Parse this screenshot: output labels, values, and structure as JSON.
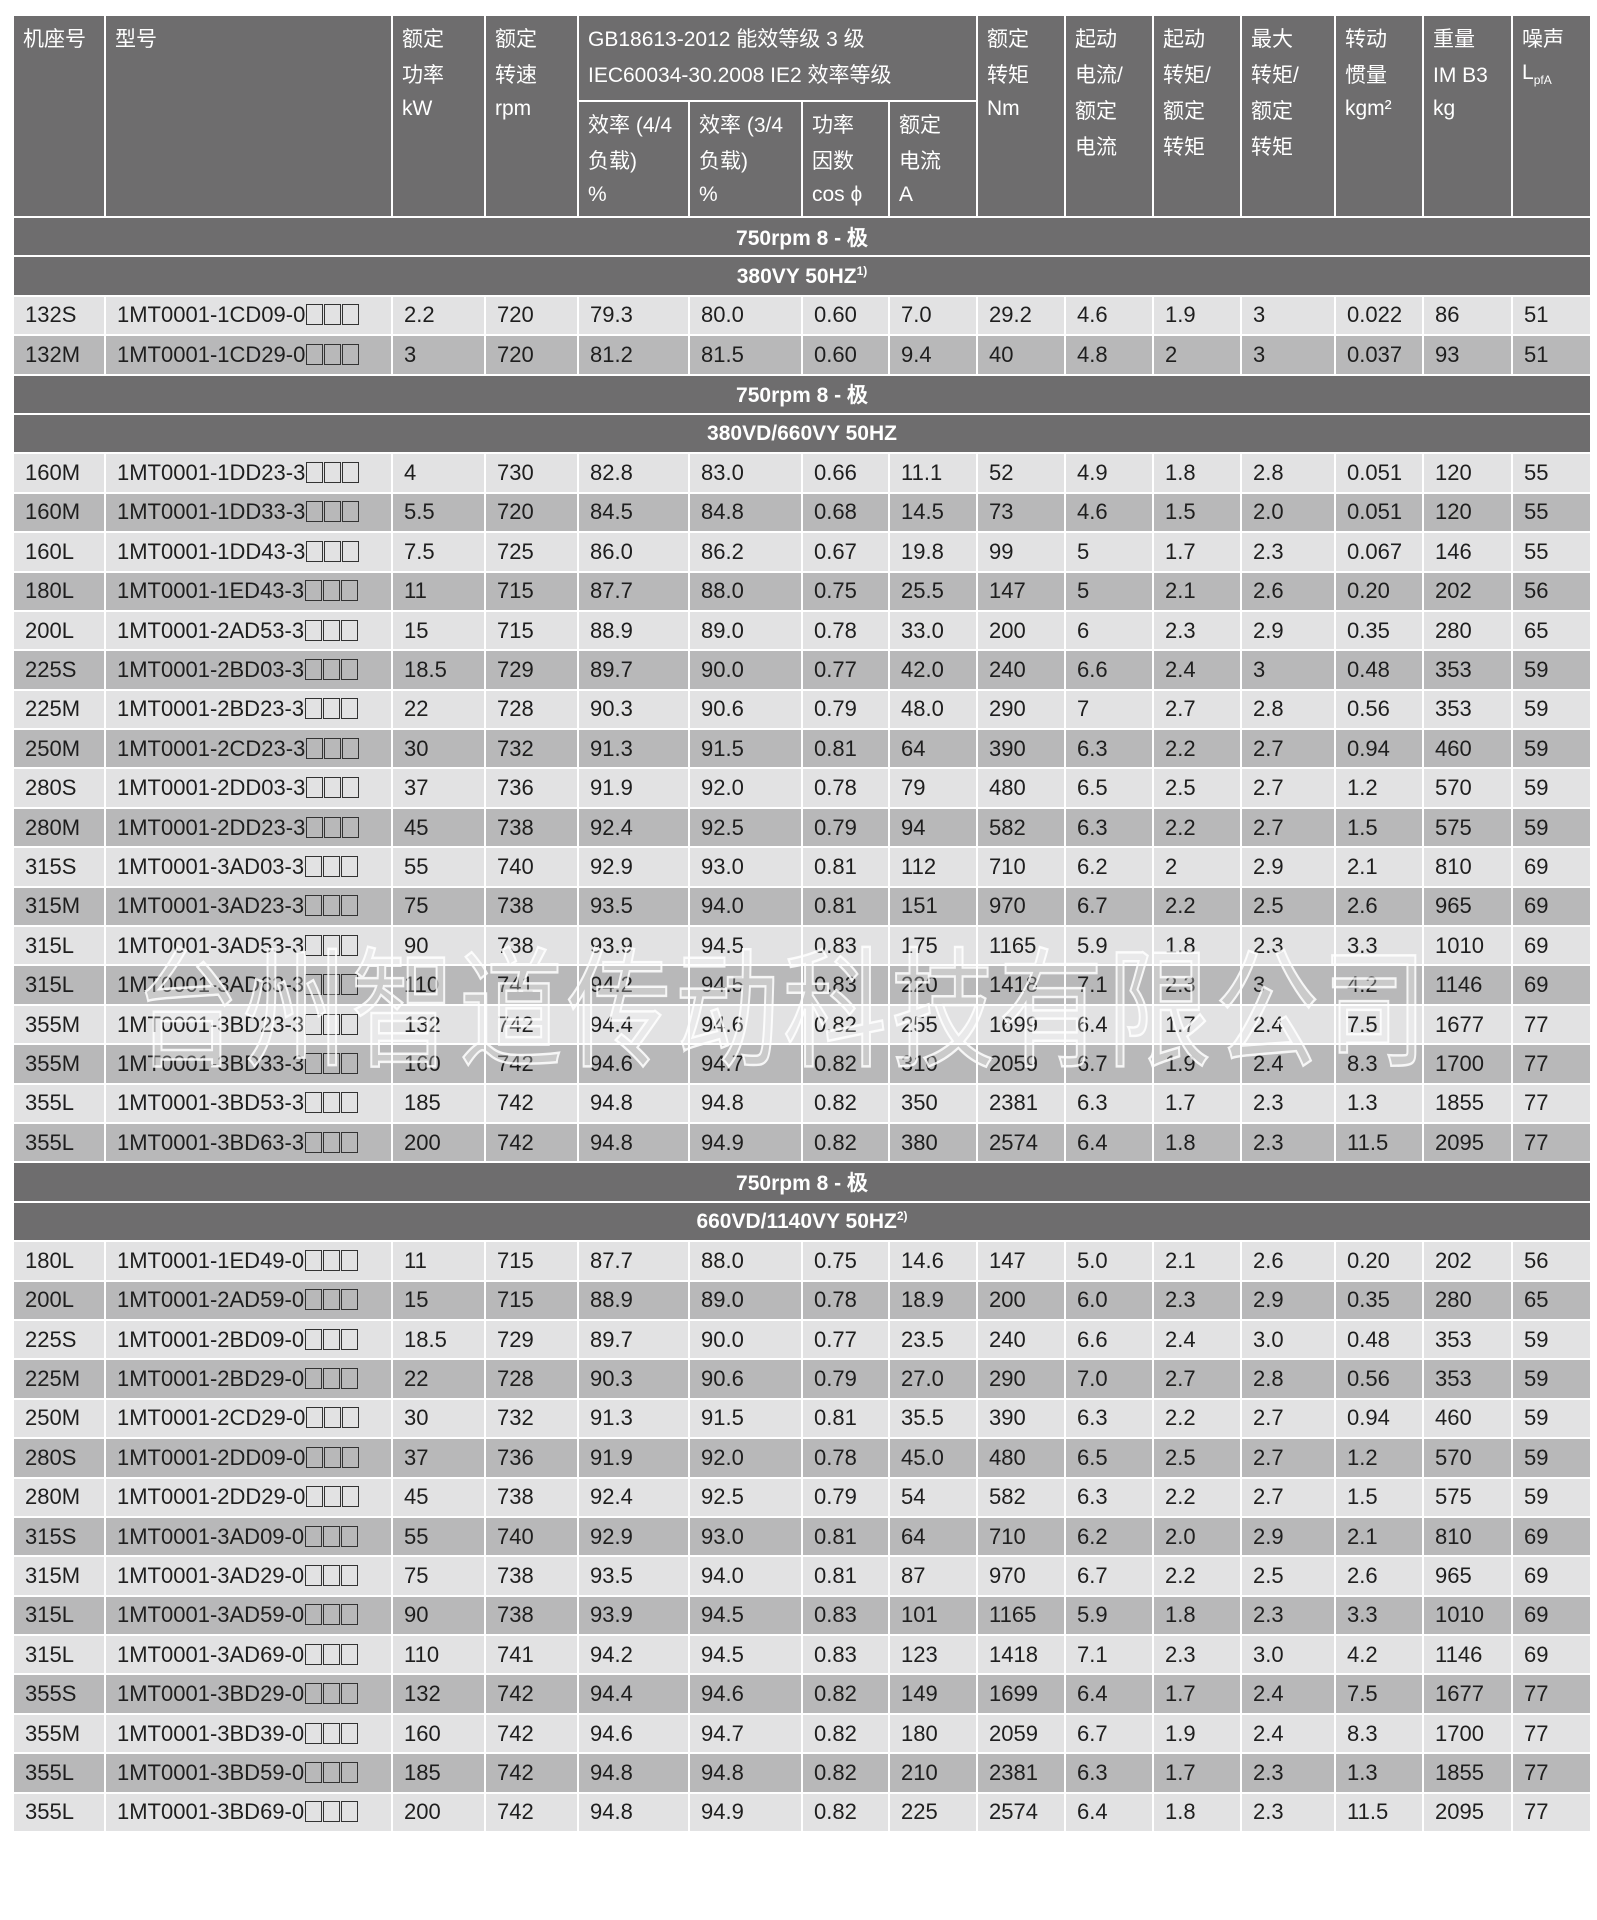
{
  "header": {
    "columns": [
      {
        "lines": [
          "机座号"
        ],
        "unit": ""
      },
      {
        "lines": [
          "型号"
        ],
        "unit": ""
      },
      {
        "lines": [
          "额定",
          "功率"
        ],
        "unit": "kW"
      },
      {
        "lines": [
          "额定",
          "转速"
        ],
        "unit": "rpm"
      },
      {
        "group": true
      },
      {
        "group": true
      },
      {
        "group": true
      },
      {
        "group": true
      },
      {
        "lines": [
          "额定",
          "转矩"
        ],
        "unit": "Nm"
      },
      {
        "lines": [
          "起动",
          "电流/",
          "额定",
          "电流"
        ],
        "unit": ""
      },
      {
        "lines": [
          "起动",
          "转矩/",
          "额定",
          "转矩"
        ],
        "unit": ""
      },
      {
        "lines": [
          "最大",
          "转矩/",
          "额定",
          "转矩"
        ],
        "unit": ""
      },
      {
        "lines": [
          "转动",
          "惯量"
        ],
        "unit": "kgm²"
      },
      {
        "lines": [
          "重量",
          "IM B3"
        ],
        "unit": "kg"
      },
      {
        "lines": [
          "噪声"
        ],
        "unit": "L",
        "unit_sub": "pfA"
      }
    ],
    "group": {
      "lines": [
        "GB18613-2012 能效等级 3 级",
        "IEC60034-30.2008 IE2 效率等级"
      ],
      "sub": [
        {
          "lines": [
            "效率 (4/4",
            "负载)"
          ],
          "unit": "%"
        },
        {
          "lines": [
            "效率 (3/4",
            "负载)"
          ],
          "unit": "%"
        },
        {
          "lines": [
            "功率",
            "因数"
          ],
          "unit": "cos ϕ"
        },
        {
          "lines": [
            "额定",
            "电流"
          ],
          "unit": "A"
        }
      ]
    }
  },
  "sections": [
    {
      "speed": "750rpm 8 - 极",
      "voltage": "380VY  50HZ",
      "footnote": "1)",
      "rows": [
        [
          "132S",
          "1MT0001-1CD09-0",
          "2.2",
          "720",
          "79.3",
          "80.0",
          "0.60",
          "7.0",
          "29.2",
          "4.6",
          "1.9",
          "3",
          "0.022",
          "86",
          "51"
        ],
        [
          "132M",
          "1MT0001-1CD29-0",
          "3",
          "720",
          "81.2",
          "81.5",
          "0.60",
          "9.4",
          "40",
          "4.8",
          "2",
          "3",
          "0.037",
          "93",
          "51"
        ]
      ]
    },
    {
      "speed": "750rpm 8 - 极",
      "voltage": "380VD/660VY 50HZ",
      "footnote": "",
      "rows": [
        [
          "160M",
          "1MT0001-1DD23-3",
          "4",
          "730",
          "82.8",
          "83.0",
          "0.66",
          "11.1",
          "52",
          "4.9",
          "1.8",
          "2.8",
          "0.051",
          "120",
          "55"
        ],
        [
          "160M",
          "1MT0001-1DD33-3",
          "5.5",
          "720",
          "84.5",
          "84.8",
          "0.68",
          "14.5",
          "73",
          "4.6",
          "1.5",
          "2.0",
          "0.051",
          "120",
          "55"
        ],
        [
          "160L",
          "1MT0001-1DD43-3",
          "7.5",
          "725",
          "86.0",
          "86.2",
          "0.67",
          "19.8",
          "99",
          "5",
          "1.7",
          "2.3",
          "0.067",
          "146",
          "55"
        ],
        [
          "180L",
          "1MT0001-1ED43-3",
          "11",
          "715",
          "87.7",
          "88.0",
          "0.75",
          "25.5",
          "147",
          "5",
          "2.1",
          "2.6",
          "0.20",
          "202",
          "56"
        ],
        [
          "200L",
          "1MT0001-2AD53-3",
          "15",
          "715",
          "88.9",
          "89.0",
          "0.78",
          "33.0",
          "200",
          "6",
          "2.3",
          "2.9",
          "0.35",
          "280",
          "65"
        ],
        [
          "225S",
          "1MT0001-2BD03-3",
          "18.5",
          "729",
          "89.7",
          "90.0",
          "0.77",
          "42.0",
          "240",
          "6.6",
          "2.4",
          "3",
          "0.48",
          "353",
          "59"
        ],
        [
          "225M",
          "1MT0001-2BD23-3",
          "22",
          "728",
          "90.3",
          "90.6",
          "0.79",
          "48.0",
          "290",
          "7",
          "2.7",
          "2.8",
          "0.56",
          "353",
          "59"
        ],
        [
          "250M",
          "1MT0001-2CD23-3",
          "30",
          "732",
          "91.3",
          "91.5",
          "0.81",
          "64",
          "390",
          "6.3",
          "2.2",
          "2.7",
          "0.94",
          "460",
          "59"
        ],
        [
          "280S",
          "1MT0001-2DD03-3",
          "37",
          "736",
          "91.9",
          "92.0",
          "0.78",
          "79",
          "480",
          "6.5",
          "2.5",
          "2.7",
          "1.2",
          "570",
          "59"
        ],
        [
          "280M",
          "1MT0001-2DD23-3",
          "45",
          "738",
          "92.4",
          "92.5",
          "0.79",
          "94",
          "582",
          "6.3",
          "2.2",
          "2.7",
          "1.5",
          "575",
          "59"
        ],
        [
          "315S",
          "1MT0001-3AD03-3",
          "55",
          "740",
          "92.9",
          "93.0",
          "0.81",
          "112",
          "710",
          "6.2",
          "2",
          "2.9",
          "2.1",
          "810",
          "69"
        ],
        [
          "315M",
          "1MT0001-3AD23-3",
          "75",
          "738",
          "93.5",
          "94.0",
          "0.81",
          "151",
          "970",
          "6.7",
          "2.2",
          "2.5",
          "2.6",
          "965",
          "69"
        ],
        [
          "315L",
          "1MT0001-3AD53-3",
          "90",
          "738",
          "93.9",
          "94.5",
          "0.83",
          "175",
          "1165",
          "5.9",
          "1.8",
          "2.3",
          "3.3",
          "1010",
          "69"
        ],
        [
          "315L",
          "1MT0001-3AD63-3",
          "110",
          "741",
          "94.2",
          "94.5",
          "0.83",
          "220",
          "1418",
          "7.1",
          "2.3",
          "3",
          "4.2",
          "1146",
          "69"
        ],
        [
          "355M",
          "1MT0001-3BD23-3",
          "132",
          "742",
          "94.4",
          "94.6",
          "0.82",
          "255",
          "1699",
          "6.4",
          "1.7",
          "2.4",
          "7.5",
          "1677",
          "77"
        ],
        [
          "355M",
          "1MT0001-3BD33-3",
          "160",
          "742",
          "94.6",
          "94.7",
          "0.82",
          "310",
          "2059",
          "6.7",
          "1.9",
          "2.4",
          "8.3",
          "1700",
          "77"
        ],
        [
          "355L",
          "1MT0001-3BD53-3",
          "185",
          "742",
          "94.8",
          "94.8",
          "0.82",
          "350",
          "2381",
          "6.3",
          "1.7",
          "2.3",
          "1.3",
          "1855",
          "77"
        ],
        [
          "355L",
          "1MT0001-3BD63-3",
          "200",
          "742",
          "94.8",
          "94.9",
          "0.82",
          "380",
          "2574",
          "6.4",
          "1.8",
          "2.3",
          "11.5",
          "2095",
          "77"
        ]
      ]
    },
    {
      "speed": "750rpm 8 - 极",
      "voltage": "660VD/1140VY 50HZ",
      "footnote": "2)",
      "rows": [
        [
          "180L",
          "1MT0001-1ED49-0",
          "11",
          "715",
          "87.7",
          "88.0",
          "0.75",
          "14.6",
          "147",
          "5.0",
          "2.1",
          "2.6",
          "0.20",
          "202",
          "56"
        ],
        [
          "200L",
          "1MT0001-2AD59-0",
          "15",
          "715",
          "88.9",
          "89.0",
          "0.78",
          "18.9",
          "200",
          "6.0",
          "2.3",
          "2.9",
          "0.35",
          "280",
          "65"
        ],
        [
          "225S",
          "1MT0001-2BD09-0",
          "18.5",
          "729",
          "89.7",
          "90.0",
          "0.77",
          "23.5",
          "240",
          "6.6",
          "2.4",
          "3.0",
          "0.48",
          "353",
          "59"
        ],
        [
          "225M",
          "1MT0001-2BD29-0",
          "22",
          "728",
          "90.3",
          "90.6",
          "0.79",
          "27.0",
          "290",
          "7.0",
          "2.7",
          "2.8",
          "0.56",
          "353",
          "59"
        ],
        [
          "250M",
          "1MT0001-2CD29-0",
          "30",
          "732",
          "91.3",
          "91.5",
          "0.81",
          "35.5",
          "390",
          "6.3",
          "2.2",
          "2.7",
          "0.94",
          "460",
          "59"
        ],
        [
          "280S",
          "1MT0001-2DD09-0",
          "37",
          "736",
          "91.9",
          "92.0",
          "0.78",
          "45.0",
          "480",
          "6.5",
          "2.5",
          "2.7",
          "1.2",
          "570",
          "59"
        ],
        [
          "280M",
          "1MT0001-2DD29-0",
          "45",
          "738",
          "92.4",
          "92.5",
          "0.79",
          "54",
          "582",
          "6.3",
          "2.2",
          "2.7",
          "1.5",
          "575",
          "59"
        ],
        [
          "315S",
          "1MT0001-3AD09-0",
          "55",
          "740",
          "92.9",
          "93.0",
          "0.81",
          "64",
          "710",
          "6.2",
          "2.0",
          "2.9",
          "2.1",
          "810",
          "69"
        ],
        [
          "315M",
          "1MT0001-3AD29-0",
          "75",
          "738",
          "93.5",
          "94.0",
          "0.81",
          "87",
          "970",
          "6.7",
          "2.2",
          "2.5",
          "2.6",
          "965",
          "69"
        ],
        [
          "315L",
          "1MT0001-3AD59-0",
          "90",
          "738",
          "93.9",
          "94.5",
          "0.83",
          "101",
          "1165",
          "5.9",
          "1.8",
          "2.3",
          "3.3",
          "1010",
          "69"
        ],
        [
          "315L",
          "1MT0001-3AD69-0",
          "110",
          "741",
          "94.2",
          "94.5",
          "0.83",
          "123",
          "1418",
          "7.1",
          "2.3",
          "3.0",
          "4.2",
          "1146",
          "69"
        ],
        [
          "355S",
          "1MT0001-3BD29-0",
          "132",
          "742",
          "94.4",
          "94.6",
          "0.82",
          "149",
          "1699",
          "6.4",
          "1.7",
          "2.4",
          "7.5",
          "1677",
          "77"
        ],
        [
          "355M",
          "1MT0001-3BD39-0",
          "160",
          "742",
          "94.6",
          "94.7",
          "0.82",
          "180",
          "2059",
          "6.7",
          "1.9",
          "2.4",
          "8.3",
          "1700",
          "77"
        ],
        [
          "355L",
          "1MT0001-3BD59-0",
          "185",
          "742",
          "94.8",
          "94.8",
          "0.82",
          "210",
          "2381",
          "6.3",
          "1.7",
          "2.3",
          "1.3",
          "1855",
          "77"
        ],
        [
          "355L",
          "1MT0001-3BD69-0",
          "200",
          "742",
          "94.8",
          "94.9",
          "0.82",
          "225",
          "2574",
          "6.4",
          "1.8",
          "2.3",
          "11.5",
          "2095",
          "77"
        ]
      ]
    }
  ],
  "watermark": "台州智道传动科技有限公司",
  "colors": {
    "header_bg": "#6e6d6e",
    "row_light": "#e2e2e3",
    "row_dark": "#b8b8b9"
  }
}
